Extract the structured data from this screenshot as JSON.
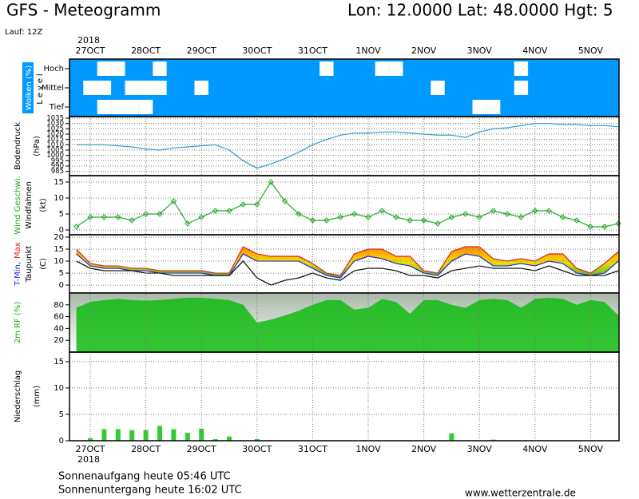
{
  "header": {
    "title": "GFS - Meteogramm",
    "location": "Lon: 12.0000 Lat: 48.0000 Hgt: 5",
    "run": "Lauf: 12Z",
    "year": "2018"
  },
  "chart_data": [
    {
      "type": "cloud",
      "ylabel": "Wolken (%)",
      "level_label": "Level",
      "background": "#0099ff",
      "categories": [
        null,
        "27OCT",
        null,
        null,
        null,
        "28OCT",
        null,
        null,
        null,
        "29OCT",
        null,
        null,
        null,
        "30OCT",
        null,
        null,
        null,
        "31OCT",
        null,
        null,
        null,
        "1NOV",
        null,
        null,
        null,
        "2NOV",
        null,
        null,
        null,
        "3NOV",
        null,
        null,
        null,
        "4NOV",
        null,
        null,
        null,
        "5NOV",
        null,
        null
      ],
      "series": [
        {
          "name": "Hoch",
          "color": "#ffffff",
          "values": [
            0,
            0,
            100,
            100,
            0,
            0,
            100,
            0,
            0,
            0,
            0,
            0,
            0,
            0,
            0,
            0,
            0,
            0,
            100,
            0,
            0,
            0,
            100,
            100,
            0,
            0,
            0,
            0,
            0,
            0,
            0,
            0,
            100,
            0,
            0,
            0,
            0,
            0,
            0,
            0
          ]
        },
        {
          "name": "Mittel",
          "color": "#ffffff",
          "values": [
            0,
            100,
            100,
            0,
            100,
            100,
            100,
            0,
            0,
            100,
            0,
            0,
            0,
            0,
            0,
            0,
            0,
            0,
            0,
            0,
            0,
            0,
            0,
            0,
            0,
            0,
            100,
            0,
            0,
            0,
            0,
            0,
            100,
            0,
            0,
            0,
            0,
            0,
            0,
            0
          ]
        },
        {
          "name": "Tief",
          "color": "#ffffff",
          "values": [
            0,
            0,
            100,
            100,
            100,
            100,
            0,
            0,
            0,
            0,
            0,
            0,
            0,
            0,
            0,
            0,
            0,
            0,
            0,
            0,
            0,
            0,
            0,
            0,
            0,
            0,
            0,
            0,
            0,
            100,
            100,
            0,
            0,
            0,
            0,
            0,
            0,
            0,
            0,
            0
          ]
        }
      ]
    },
    {
      "type": "line",
      "ylabel": "(hPa)",
      "ylim": [
        981,
        1036.5
      ],
      "yticks": [
        985,
        990,
        995,
        1000,
        1005,
        1010,
        1015,
        1020,
        1025,
        1030,
        1035
      ],
      "grid": true,
      "series": [
        {
          "name": "Bodendruck",
          "color": "#2a9fd6",
          "values": [
            1010,
            1010,
            1010,
            1009,
            1008,
            1006,
            1005,
            1007,
            1008,
            1009,
            1010,
            1005,
            995,
            988,
            992,
            997,
            1003,
            1010,
            1015,
            1019,
            1021,
            1021,
            1022,
            1022,
            1021,
            1020,
            1019,
            1019,
            1017,
            1022,
            1025,
            1026,
            1028,
            1030,
            1030,
            1029,
            1029,
            1028,
            1028,
            1027
          ]
        }
      ]
    },
    {
      "type": "line",
      "ylabel": "Windfahnen",
      "unit": "(kt)",
      "ylim": [
        -1.5,
        17
      ],
      "yticks": [
        0,
        5,
        10,
        15
      ],
      "grid": true,
      "markers": true,
      "series": [
        {
          "name": "Wind Geschwi.",
          "color": "#22aa22",
          "values": [
            1,
            4,
            4,
            4,
            3,
            5,
            5,
            9,
            2,
            4,
            6,
            6,
            8,
            8,
            15,
            9,
            5,
            3,
            3,
            4,
            5,
            4,
            6,
            4,
            3,
            3,
            2,
            4,
            5,
            4,
            6,
            5,
            4,
            6,
            6,
            4,
            3,
            1,
            1,
            2
          ]
        }
      ]
    },
    {
      "type": "line",
      "unit": "(C)",
      "ylim": [
        -3.3,
        21
      ],
      "yticks": [
        0,
        5,
        10,
        15,
        20
      ],
      "grid": true,
      "fill_between": true,
      "band_colors": [
        "#ff8c00",
        "#f0e000",
        "#44bb33"
      ],
      "series": [
        {
          "name": "Max",
          "color": "#e02020",
          "values": [
            15,
            9,
            8,
            8,
            7,
            7,
            6,
            6,
            6,
            6,
            5,
            5,
            16,
            13,
            12,
            12,
            12,
            9,
            5,
            4,
            13,
            15,
            15,
            12,
            12,
            6,
            5,
            14,
            16,
            16,
            11,
            10,
            11,
            10,
            13,
            13,
            7,
            5,
            9,
            14
          ]
        },
        {
          "name": "T-Min,",
          "color": "#2020e0",
          "values": [
            13,
            8,
            7,
            7,
            6,
            6,
            5,
            5,
            5,
            5,
            4,
            4,
            13,
            10,
            10,
            10,
            10,
            7,
            4,
            3,
            10,
            12,
            11,
            9,
            8,
            5,
            4,
            10,
            13,
            12,
            8,
            8,
            9,
            8,
            10,
            9,
            5,
            4,
            5,
            10
          ]
        },
        {
          "name": "Taupunkt",
          "color": "#000000",
          "values": [
            10,
            7,
            6,
            6,
            6,
            5,
            5,
            4,
            4,
            4,
            4,
            4,
            10,
            3,
            0,
            2,
            3,
            5,
            3,
            2,
            6,
            7,
            7,
            6,
            4,
            4,
            3,
            6,
            7,
            8,
            7,
            7,
            7,
            6,
            8,
            6,
            4,
            4,
            4,
            6
          ]
        }
      ]
    },
    {
      "type": "area",
      "ylim": [
        0,
        100
      ],
      "yticks": [
        20,
        40,
        60,
        80
      ],
      "grid": false,
      "series": [
        {
          "name": "2m RF (%)",
          "color": "#11bb11",
          "values": [
            75,
            85,
            88,
            90,
            88,
            87,
            88,
            90,
            92,
            92,
            90,
            88,
            80,
            50,
            55,
            62,
            70,
            80,
            88,
            88,
            72,
            75,
            90,
            85,
            65,
            88,
            88,
            80,
            75,
            88,
            90,
            88,
            75,
            90,
            92,
            90,
            80,
            88,
            85,
            62
          ]
        }
      ]
    },
    {
      "type": "bar",
      "unit": "(mm)",
      "ylim": [
        0,
        16.8
      ],
      "yticks": [
        0,
        5,
        10,
        15
      ],
      "grid": true,
      "categories": [
        null,
        "27OCT",
        null,
        null,
        null,
        "28OCT",
        null,
        null,
        null,
        "29OCT",
        null,
        null,
        null,
        "30OCT",
        null,
        null,
        null,
        "31OCT",
        null,
        null,
        null,
        "1NOV",
        null,
        null,
        null,
        "2NOV",
        null,
        null,
        null,
        "3NOV",
        null,
        null,
        null,
        "4NOV",
        null,
        null,
        null,
        "5NOV",
        null,
        null
      ],
      "series": [
        {
          "name": "Niederschlag",
          "color": "#33cc33",
          "values": [
            0,
            0.5,
            2.2,
            2.2,
            2.0,
            2.0,
            2.8,
            2.2,
            1.5,
            2.3,
            0.3,
            0.8,
            0,
            0.3,
            0,
            0,
            0,
            0,
            0,
            0,
            0,
            0,
            0,
            0,
            0,
            0,
            0,
            1.4,
            0,
            0,
            0.2,
            0,
            0,
            0,
            0,
            0,
            0,
            0,
            0,
            0
          ]
        }
      ]
    }
  ],
  "footer": {
    "sunrise": "Sonnenaufgang heute 05:46 UTC",
    "sunset": "Sonnenuntergang heute 16:02 UTC",
    "source": "www.wetterzentrale.de"
  }
}
